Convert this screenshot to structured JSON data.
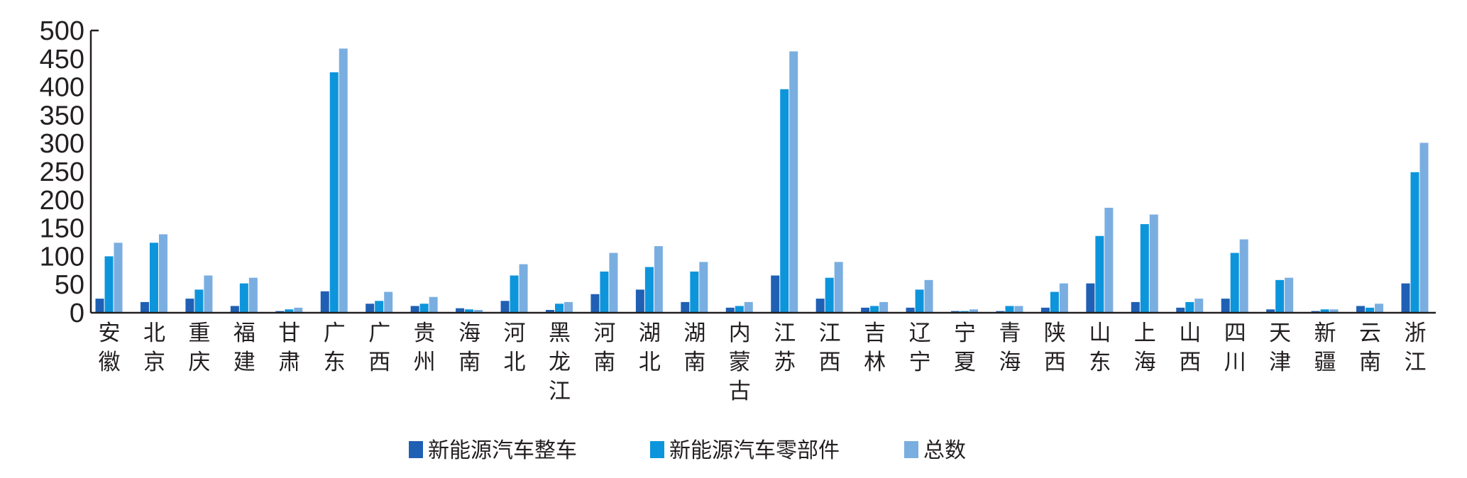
{
  "chart_data": {
    "type": "bar",
    "title": "",
    "xlabel": "",
    "ylabel": "",
    "ylim": [
      0,
      500
    ],
    "yticks": [
      "0",
      "50",
      "100",
      "150",
      "200",
      "250",
      "300",
      "350",
      "400",
      "450",
      "500"
    ],
    "grid": false,
    "legend_position": "bottom",
    "categories": [
      "安徽",
      "北京",
      "重庆",
      "福建",
      "甘肃",
      "广东",
      "广西",
      "贵州",
      "海南",
      "河北",
      "黑龙江",
      "河南",
      "湖北",
      "湖南",
      "内蒙古",
      "江苏",
      "江西",
      "吉林",
      "辽宁",
      "宁夏",
      "青海",
      "陕西",
      "山东",
      "上海",
      "山西",
      "四川",
      "天津",
      "新疆",
      "云南",
      "浙江"
    ],
    "series": [
      {
        "name": "新能源汽车整车",
        "color": "#1f60b4",
        "values": [
          25,
          19,
          25,
          12,
          3,
          38,
          16,
          12,
          8,
          21,
          5,
          33,
          41,
          19,
          9,
          66,
          25,
          9,
          9,
          3,
          3,
          9,
          52,
          19,
          9,
          25,
          6,
          3,
          12,
          52
        ]
      },
      {
        "name": "新能源汽车零部件",
        "color": "#0d95dc",
        "values": [
          100,
          124,
          41,
          52,
          6,
          426,
          21,
          16,
          6,
          66,
          16,
          73,
          81,
          73,
          12,
          396,
          62,
          12,
          41,
          3,
          12,
          37,
          136,
          157,
          19,
          106,
          58,
          6,
          9,
          249
        ]
      },
      {
        "name": "总数",
        "color": "#7aaee0",
        "values": [
          124,
          139,
          66,
          62,
          9,
          468,
          37,
          28,
          5,
          86,
          19,
          106,
          118,
          90,
          19,
          463,
          90,
          19,
          58,
          6,
          12,
          52,
          186,
          174,
          25,
          130,
          62,
          6,
          16,
          301
        ]
      }
    ]
  }
}
